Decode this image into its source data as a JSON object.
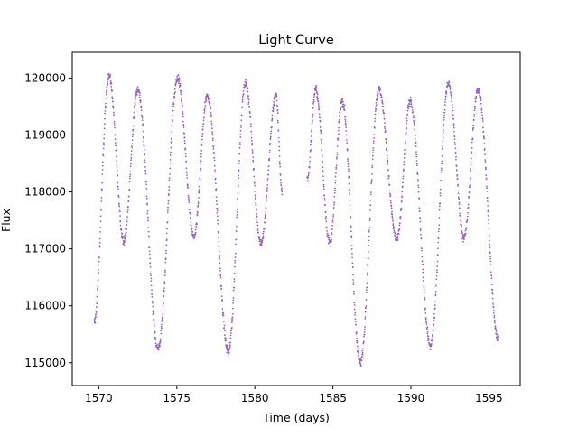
{
  "chart_data": {
    "type": "scatter",
    "title": "Light Curve",
    "xlabel": "Time (days)",
    "ylabel": "Flux",
    "xlim": [
      1568.3,
      1597.0
    ],
    "ylim": [
      114600,
      120450
    ],
    "xticks": [
      1570,
      1575,
      1580,
      1585,
      1590,
      1595
    ],
    "yticks": [
      115000,
      116000,
      117000,
      118000,
      119000,
      120000
    ],
    "grid": false,
    "legend": "none",
    "series": [
      {
        "color": "#9467bd",
        "x_range": [
          1569.7,
          1595.7
        ],
        "gap": [
          1581.8,
          1583.3
        ],
        "description_points": [
          {
            "x": 1569.7,
            "y": 115700
          },
          {
            "x": 1570.65,
            "y": 120050
          },
          {
            "x": 1571.6,
            "y": 117150
          },
          {
            "x": 1572.5,
            "y": 119800
          },
          {
            "x": 1573.8,
            "y": 115250
          },
          {
            "x": 1575.05,
            "y": 120000
          },
          {
            "x": 1576.1,
            "y": 117200
          },
          {
            "x": 1576.95,
            "y": 119700
          },
          {
            "x": 1578.3,
            "y": 115200
          },
          {
            "x": 1579.4,
            "y": 119900
          },
          {
            "x": 1580.4,
            "y": 117100
          },
          {
            "x": 1581.35,
            "y": 119700
          },
          {
            "x": 1581.75,
            "y": 118000
          },
          {
            "x": 1583.35,
            "y": 118200
          },
          {
            "x": 1583.9,
            "y": 119800
          },
          {
            "x": 1584.8,
            "y": 117100
          },
          {
            "x": 1585.6,
            "y": 119600
          },
          {
            "x": 1586.75,
            "y": 115000
          },
          {
            "x": 1587.95,
            "y": 119800
          },
          {
            "x": 1589.1,
            "y": 117150
          },
          {
            "x": 1589.95,
            "y": 119600
          },
          {
            "x": 1591.25,
            "y": 115300
          },
          {
            "x": 1592.4,
            "y": 119900
          },
          {
            "x": 1593.4,
            "y": 117200
          },
          {
            "x": 1594.3,
            "y": 119800
          },
          {
            "x": 1595.6,
            "y": 115400
          }
        ]
      }
    ]
  }
}
